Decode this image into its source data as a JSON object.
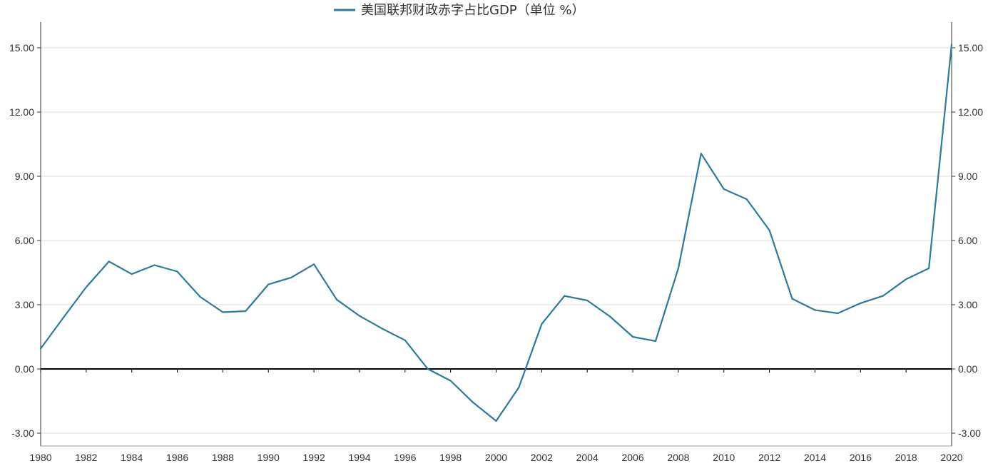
{
  "colors": {
    "series": "#2c7aa0",
    "grid": "#dcdcdc",
    "axis": "#333333",
    "zero_line": "#000000",
    "text": "#333333"
  },
  "chart_data": {
    "type": "line",
    "title": "",
    "legend": {
      "position": "top-center",
      "entries": [
        "美国联邦财政赤字占比GDP（单位 %）"
      ]
    },
    "xlabel": "",
    "ylabel": "",
    "x_tick_labels": [
      "1980",
      "1982",
      "1984",
      "1986",
      "1988",
      "1990",
      "1992",
      "1994",
      "1996",
      "1998",
      "2000",
      "2002",
      "2004",
      "2006",
      "2008",
      "2010",
      "2012",
      "2014",
      "2016",
      "2018",
      "2020"
    ],
    "y_tick_labels": [
      "-3.00",
      "0.00",
      "3.00",
      "6.00",
      "9.00",
      "12.00",
      "15.00"
    ],
    "y_ticks": [
      -3,
      0,
      3,
      6,
      9,
      12,
      15
    ],
    "xlim": [
      1980,
      2020
    ],
    "ylim": [
      -3.6,
      16.2
    ],
    "grid": true,
    "secondary_y_axis": true,
    "zero_line": true,
    "series": [
      {
        "name": "美国联邦财政赤字占比GDP（单位 %）",
        "x": [
          1980,
          1981,
          1982,
          1983,
          1984,
          1985,
          1986,
          1987,
          1988,
          1989,
          1990,
          1991,
          1992,
          1993,
          1994,
          1995,
          1996,
          1997,
          1998,
          1999,
          2000,
          2001,
          2002,
          2003,
          2004,
          2005,
          2006,
          2007,
          2008,
          2009,
          2010,
          2011,
          2012,
          2013,
          2014,
          2015,
          2016,
          2017,
          2018,
          2019,
          2020
        ],
        "values": [
          0.95,
          2.4,
          3.82,
          5.02,
          4.43,
          4.85,
          4.55,
          3.37,
          2.65,
          2.7,
          3.95,
          4.27,
          4.89,
          3.24,
          2.48,
          1.88,
          1.34,
          0.0,
          -0.55,
          -1.58,
          -2.43,
          -0.86,
          2.1,
          3.41,
          3.2,
          2.45,
          1.5,
          1.3,
          4.7,
          10.06,
          8.4,
          7.93,
          6.48,
          3.28,
          2.75,
          2.6,
          3.07,
          3.42,
          4.19,
          4.7,
          15.15
        ]
      }
    ]
  }
}
